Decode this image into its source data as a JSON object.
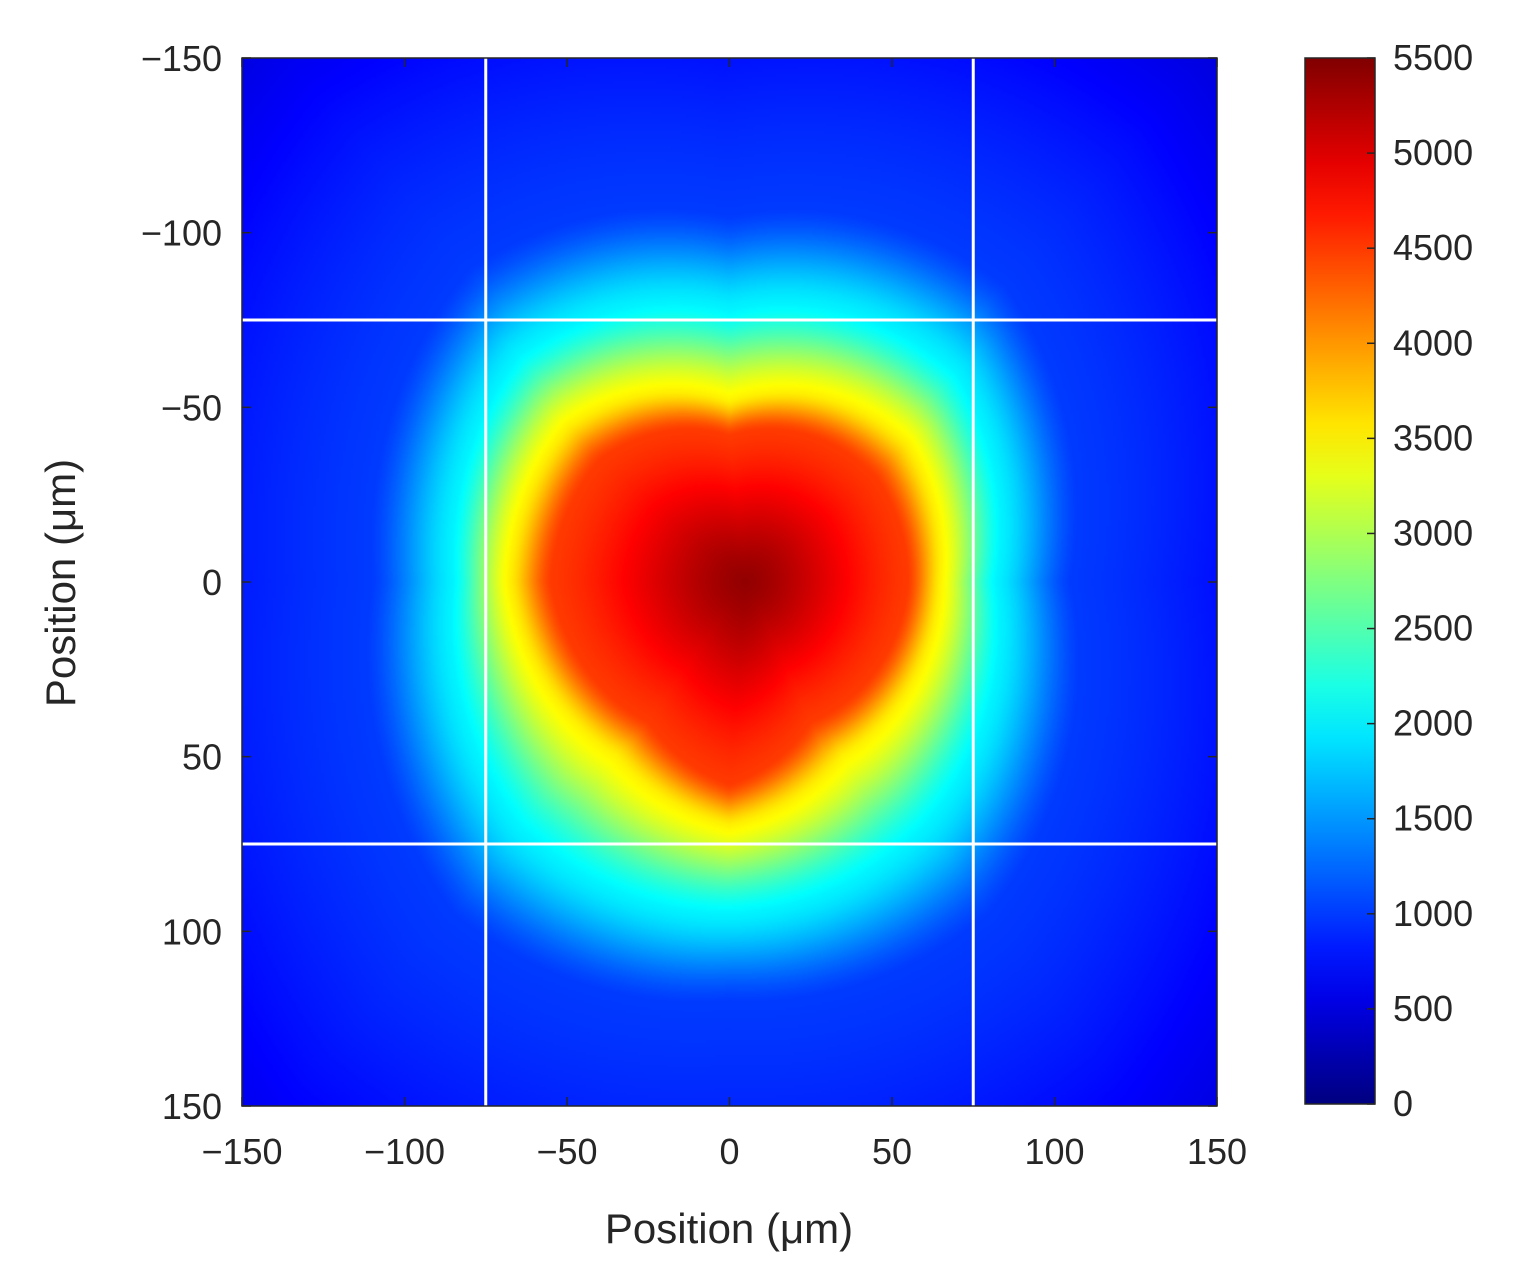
{
  "chart_data": {
    "type": "heatmap",
    "title": "",
    "xlabel": "Position (μm)",
    "ylabel": "Position (μm)",
    "xlim": [
      -150,
      150
    ],
    "ylim": [
      -150,
      150
    ],
    "y_direction": "reversed",
    "xticks": [
      -150,
      -100,
      -50,
      0,
      50,
      100,
      150
    ],
    "yticks": [
      -150,
      -100,
      -50,
      0,
      50,
      100,
      150
    ],
    "xtick_labels": [
      "−150",
      "−100",
      "−50",
      "0",
      "50",
      "100",
      "150"
    ],
    "ytick_labels": [
      "−150",
      "−100",
      "−50",
      "0",
      "50",
      "100",
      "150"
    ],
    "colormap": "jet",
    "clim": [
      0,
      5500
    ],
    "colorbar_ticks": [
      0,
      500,
      1000,
      1500,
      2000,
      2500,
      3000,
      3500,
      4000,
      4500,
      5000,
      5500
    ],
    "colorbar_tick_labels": [
      "0",
      "500",
      "1000",
      "1500",
      "2000",
      "2500",
      "3000",
      "3500",
      "4000",
      "4500",
      "5000",
      "5500"
    ],
    "peak": {
      "x": 5,
      "y": 0,
      "value": 5400
    },
    "reference_lines": {
      "vertical_x": [
        -75,
        75
      ],
      "horizontal_y": [
        -75,
        75
      ],
      "color": "#ffffff"
    },
    "contours_approx": [
      {
        "value": 4500,
        "points": [
          [
            -55,
            0
          ],
          [
            -40,
            -35
          ],
          [
            0,
            -42
          ],
          [
            45,
            -30
          ],
          [
            55,
            0
          ],
          [
            25,
            40
          ],
          [
            0,
            58
          ],
          [
            -25,
            40
          ]
        ]
      },
      {
        "value": 3500,
        "points": [
          [
            -68,
            0
          ],
          [
            -50,
            -45
          ],
          [
            0,
            -52
          ],
          [
            55,
            -40
          ],
          [
            65,
            0
          ],
          [
            35,
            50
          ],
          [
            0,
            70
          ],
          [
            -35,
            50
          ]
        ]
      },
      {
        "value": 2000,
        "points": [
          [
            -85,
            0
          ],
          [
            -65,
            -65
          ],
          [
            0,
            -78
          ],
          [
            70,
            -60
          ],
          [
            82,
            0
          ],
          [
            60,
            70
          ],
          [
            0,
            95
          ],
          [
            -65,
            70
          ]
        ]
      },
      {
        "value": 1000,
        "points": [
          [
            -110,
            0
          ],
          [
            -80,
            -90
          ],
          [
            0,
            -105
          ],
          [
            85,
            -85
          ],
          [
            105,
            0
          ],
          [
            80,
            95
          ],
          [
            0,
            120
          ],
          [
            -85,
            95
          ]
        ]
      }
    ]
  }
}
